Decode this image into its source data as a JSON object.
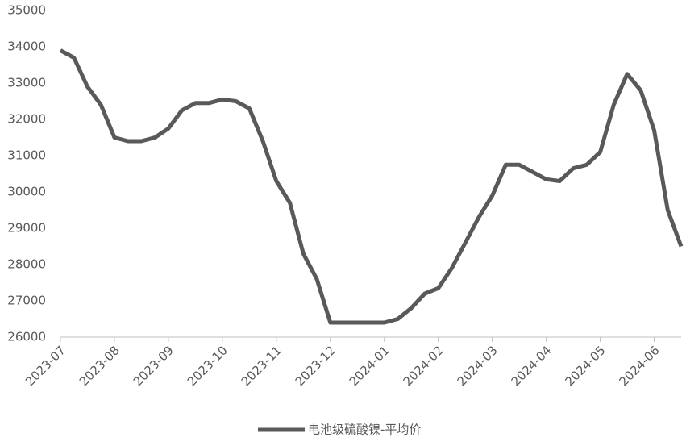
{
  "chart_data": {
    "type": "line",
    "categories": [
      "2023-07",
      null,
      null,
      null,
      "2023-08",
      null,
      null,
      null,
      "2023-09",
      null,
      null,
      null,
      "2023-10",
      null,
      null,
      null,
      "2023-11",
      null,
      null,
      null,
      "2023-12",
      null,
      null,
      null,
      "2024-01",
      null,
      null,
      null,
      "2024-02",
      null,
      null,
      null,
      "2024-03",
      null,
      null,
      null,
      "2024-04",
      null,
      null,
      null,
      "2024-05",
      null,
      null,
      null,
      "2024-06",
      null,
      null
    ],
    "series": [
      {
        "name": "电池级硫酸镍-平均价",
        "color": "#595959",
        "values": [
          33900,
          33700,
          32900,
          32400,
          31500,
          31400,
          31400,
          31500,
          31750,
          32250,
          32450,
          32450,
          32550,
          32500,
          32300,
          31400,
          30300,
          29700,
          28300,
          27600,
          26400,
          26400,
          26400,
          26400,
          26400,
          26500,
          26800,
          27200,
          27350,
          27900,
          28600,
          29300,
          29900,
          30750,
          30750,
          30550,
          30350,
          30300,
          30650,
          30750,
          31100,
          32400,
          33250,
          32800,
          31700,
          29500,
          28500
        ]
      }
    ],
    "ylim": [
      26000,
      35000
    ],
    "yticks": [
      26000,
      27000,
      28000,
      29000,
      30000,
      31000,
      32000,
      33000,
      34000,
      35000
    ],
    "grid": false,
    "legend": "bottom"
  }
}
